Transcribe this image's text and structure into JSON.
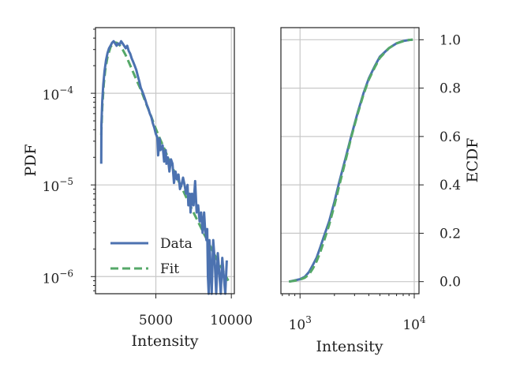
{
  "colors": {
    "data": "#4c72b0",
    "fit": "#55a868",
    "grid": "#c8c8c8",
    "axis": "#222222"
  },
  "chart_data": [
    {
      "type": "line",
      "panel": "left",
      "xlabel": "Intensity",
      "ylabel": "PDF",
      "yscale": "log",
      "xlim": [
        1000,
        10200
      ],
      "ylim": [
        6.5e-07,
        0.00052
      ],
      "x_ticks": [
        {
          "value": 5000,
          "label": "5000"
        },
        {
          "value": 10000,
          "label": "10000"
        }
      ],
      "y_ticks": [
        {
          "value": 1e-06,
          "base": "10",
          "exp": "−6"
        },
        {
          "value": 1e-05,
          "base": "10",
          "exp": "−5"
        },
        {
          "value": 0.0001,
          "base": "10",
          "exp": "−4"
        }
      ],
      "grid": true,
      "legend": {
        "placement": "lower-left",
        "entries": [
          "Data",
          "Fit"
        ]
      },
      "series": [
        {
          "name": "Data",
          "style": "solid",
          "points": [
            [
              1380,
              1.7e-05
            ],
            [
              1390,
              4.5e-05
            ],
            [
              1450,
              8.2e-05
            ],
            [
              1520,
              0.000125
            ],
            [
              1600,
              0.000175
            ],
            [
              1700,
              0.00023
            ],
            [
              1800,
              0.000275
            ],
            [
              1900,
              0.00031
            ],
            [
              2000,
              0.00033
            ],
            [
              2100,
              0.000355
            ],
            [
              2200,
              0.00037
            ],
            [
              2300,
              0.00035
            ],
            [
              2400,
              0.00033
            ],
            [
              2500,
              0.00035
            ],
            [
              2600,
              0.00034
            ],
            [
              2700,
              0.00037
            ],
            [
              2800,
              0.00035
            ],
            [
              2900,
              0.00033
            ],
            [
              3000,
              0.00031
            ],
            [
              3100,
              0.00033
            ],
            [
              3200,
              0.00029
            ],
            [
              3300,
              0.00027
            ],
            [
              3400,
              0.00024
            ],
            [
              3500,
              0.00022
            ],
            [
              3600,
              0.0002
            ],
            [
              3700,
              0.00018
            ],
            [
              3800,
              0.000155
            ],
            [
              3900,
              0.000135
            ],
            [
              4000,
              0.000115
            ],
            [
              4100,
              0.000105
            ],
            [
              4200,
              9.5e-05
            ],
            [
              4300,
              8.5e-05
            ],
            [
              4400,
              7.5e-05
            ],
            [
              4500,
              6.8e-05
            ],
            [
              4600,
              6e-05
            ],
            [
              4700,
              5.5e-05
            ],
            [
              4800,
              4.7e-05
            ],
            [
              4900,
              4.2e-05
            ],
            [
              5000,
              3.6e-05
            ],
            [
              5100,
              3.3e-05
            ],
            [
              5150,
              2.1e-05
            ],
            [
              5250,
              3.2e-05
            ],
            [
              5300,
              2.4e-05
            ],
            [
              5450,
              2.7e-05
            ],
            [
              5550,
              1.8e-05
            ],
            [
              5650,
              2.4e-05
            ],
            [
              5700,
              1.7e-05
            ],
            [
              5800,
              2e-05
            ],
            [
              5900,
              1.4e-05
            ],
            [
              6000,
              1.9e-05
            ],
            [
              6100,
              1.7e-05
            ],
            [
              6200,
              1.05e-05
            ],
            [
              6300,
              1.4e-05
            ],
            [
              6400,
              1.15e-05
            ],
            [
              6500,
              1.3e-05
            ],
            [
              6600,
              9e-06
            ],
            [
              6700,
              1e-05
            ],
            [
              6800,
              1.2e-05
            ],
            [
              6900,
              1e-05
            ],
            [
              7000,
              8e-06
            ],
            [
              7100,
              1e-05
            ],
            [
              7150,
              6e-06
            ],
            [
              7250,
              8e-06
            ],
            [
              7300,
              5e-06
            ],
            [
              7400,
              8e-06
            ],
            [
              7500,
              6e-06
            ],
            [
              7600,
              1.1e-05
            ],
            [
              7700,
              5e-06
            ],
            [
              7800,
              6e-06
            ],
            [
              7900,
              4e-06
            ],
            [
              8000,
              5e-06
            ],
            [
              8100,
              3e-06
            ],
            [
              8200,
              5e-06
            ],
            [
              8250,
              3.5e-06
            ],
            [
              8350,
              2.5e-06
            ],
            [
              8400,
              3.3e-06
            ],
            [
              8450,
              1e-06
            ],
            [
              8500,
              4e-07
            ],
            [
              8550,
              2.5e-06
            ],
            [
              8600,
              1.6e-06
            ],
            [
              8700,
              4e-07
            ],
            [
              8800,
              2.5e-06
            ],
            [
              8900,
              1.5e-06
            ],
            [
              9000,
              4e-07
            ],
            [
              9100,
              1.8e-06
            ],
            [
              9200,
              1.1e-06
            ],
            [
              9300,
              4e-07
            ],
            [
              9400,
              1.6e-06
            ],
            [
              9500,
              1e-06
            ],
            [
              9600,
              4e-07
            ],
            [
              9700,
              1.5e-06
            ]
          ]
        },
        {
          "name": "Fit",
          "style": "dashed",
          "points": [
            [
              1380,
              3.5e-05
            ],
            [
              1450,
              7e-05
            ],
            [
              1550,
              0.000125
            ],
            [
              1650,
              0.00018
            ],
            [
              1800,
              0.00025
            ],
            [
              2000,
              0.00032
            ],
            [
              2200,
              0.00036
            ],
            [
              2400,
              0.000355
            ],
            [
              2600,
              0.000335
            ],
            [
              2800,
              0.0003
            ],
            [
              3000,
              0.00026
            ],
            [
              3200,
              0.00022
            ],
            [
              3400,
              0.000185
            ],
            [
              3600,
              0.000155
            ],
            [
              3800,
              0.00013
            ],
            [
              4000,
              0.00011
            ],
            [
              4200,
              9e-05
            ],
            [
              4400,
              7.4e-05
            ],
            [
              4600,
              6.1e-05
            ],
            [
              4800,
              5e-05
            ],
            [
              5000,
              4.1e-05
            ],
            [
              5200,
              3.4e-05
            ],
            [
              5400,
              2.85e-05
            ],
            [
              5600,
              2.4e-05
            ],
            [
              5800,
              2e-05
            ],
            [
              6000,
              1.68e-05
            ],
            [
              6200,
              1.42e-05
            ],
            [
              6400,
              1.2e-05
            ],
            [
              6600,
              1.02e-05
            ],
            [
              6800,
              8.7e-06
            ],
            [
              7000,
              7.4e-06
            ],
            [
              7200,
              6.3e-06
            ],
            [
              7400,
              5.4e-06
            ],
            [
              7600,
              4.6e-06
            ],
            [
              7800,
              3.95e-06
            ],
            [
              8000,
              3.4e-06
            ],
            [
              8200,
              2.9e-06
            ],
            [
              8400,
              2.5e-06
            ],
            [
              8600,
              2.15e-06
            ],
            [
              8800,
              1.85e-06
            ],
            [
              9000,
              1.6e-06
            ],
            [
              9200,
              1.38e-06
            ],
            [
              9400,
              1.2e-06
            ],
            [
              9600,
              1.04e-06
            ],
            [
              9800,
              9e-07
            ]
          ]
        }
      ]
    },
    {
      "type": "line",
      "panel": "right",
      "xlabel": "Intensity",
      "ylabel": "ECDF",
      "xscale": "log",
      "xlim": [
        680,
        11000
      ],
      "ylim": [
        -0.05,
        1.05
      ],
      "x_ticks": [
        {
          "value": 1000,
          "base": "10",
          "exp": "3"
        },
        {
          "value": 10000,
          "base": "10",
          "exp": "4"
        }
      ],
      "y_ticks": [
        {
          "value": 0.0,
          "label": "0.0"
        },
        {
          "value": 0.2,
          "label": "0.2"
        },
        {
          "value": 0.4,
          "label": "0.4"
        },
        {
          "value": 0.6,
          "label": "0.6"
        },
        {
          "value": 0.8,
          "label": "0.8"
        },
        {
          "value": 1.0,
          "label": "1.0"
        }
      ],
      "grid": true,
      "series": [
        {
          "name": "Data",
          "style": "solid",
          "points": [
            [
              800,
              0.0
            ],
            [
              900,
              0.005
            ],
            [
              1000,
              0.01
            ],
            [
              1100,
              0.02
            ],
            [
              1200,
              0.04
            ],
            [
              1300,
              0.07
            ],
            [
              1400,
              0.1
            ],
            [
              1500,
              0.14
            ],
            [
              1600,
              0.18
            ],
            [
              1800,
              0.25
            ],
            [
              2000,
              0.33
            ],
            [
              2200,
              0.41
            ],
            [
              2500,
              0.51
            ],
            [
              2800,
              0.6
            ],
            [
              3200,
              0.7
            ],
            [
              3600,
              0.78
            ],
            [
              4000,
              0.84
            ],
            [
              4500,
              0.89
            ],
            [
              5000,
              0.93
            ],
            [
              6000,
              0.965
            ],
            [
              7000,
              0.985
            ],
            [
              8000,
              0.995
            ],
            [
              9000,
              0.999
            ],
            [
              9700,
              1.0
            ]
          ]
        },
        {
          "name": "Fit",
          "style": "dashed",
          "points": [
            [
              800,
              0.0
            ],
            [
              900,
              0.004
            ],
            [
              1000,
              0.008
            ],
            [
              1100,
              0.016
            ],
            [
              1200,
              0.03
            ],
            [
              1300,
              0.055
            ],
            [
              1400,
              0.085
            ],
            [
              1500,
              0.12
            ],
            [
              1600,
              0.16
            ],
            [
              1800,
              0.235
            ],
            [
              2000,
              0.315
            ],
            [
              2200,
              0.395
            ],
            [
              2500,
              0.5
            ],
            [
              2800,
              0.595
            ],
            [
              3200,
              0.695
            ],
            [
              3600,
              0.775
            ],
            [
              4000,
              0.835
            ],
            [
              4500,
              0.885
            ],
            [
              5000,
              0.925
            ],
            [
              6000,
              0.965
            ],
            [
              7000,
              0.985
            ],
            [
              8000,
              0.994
            ],
            [
              9000,
              0.999
            ],
            [
              9700,
              1.0
            ]
          ]
        }
      ]
    }
  ]
}
